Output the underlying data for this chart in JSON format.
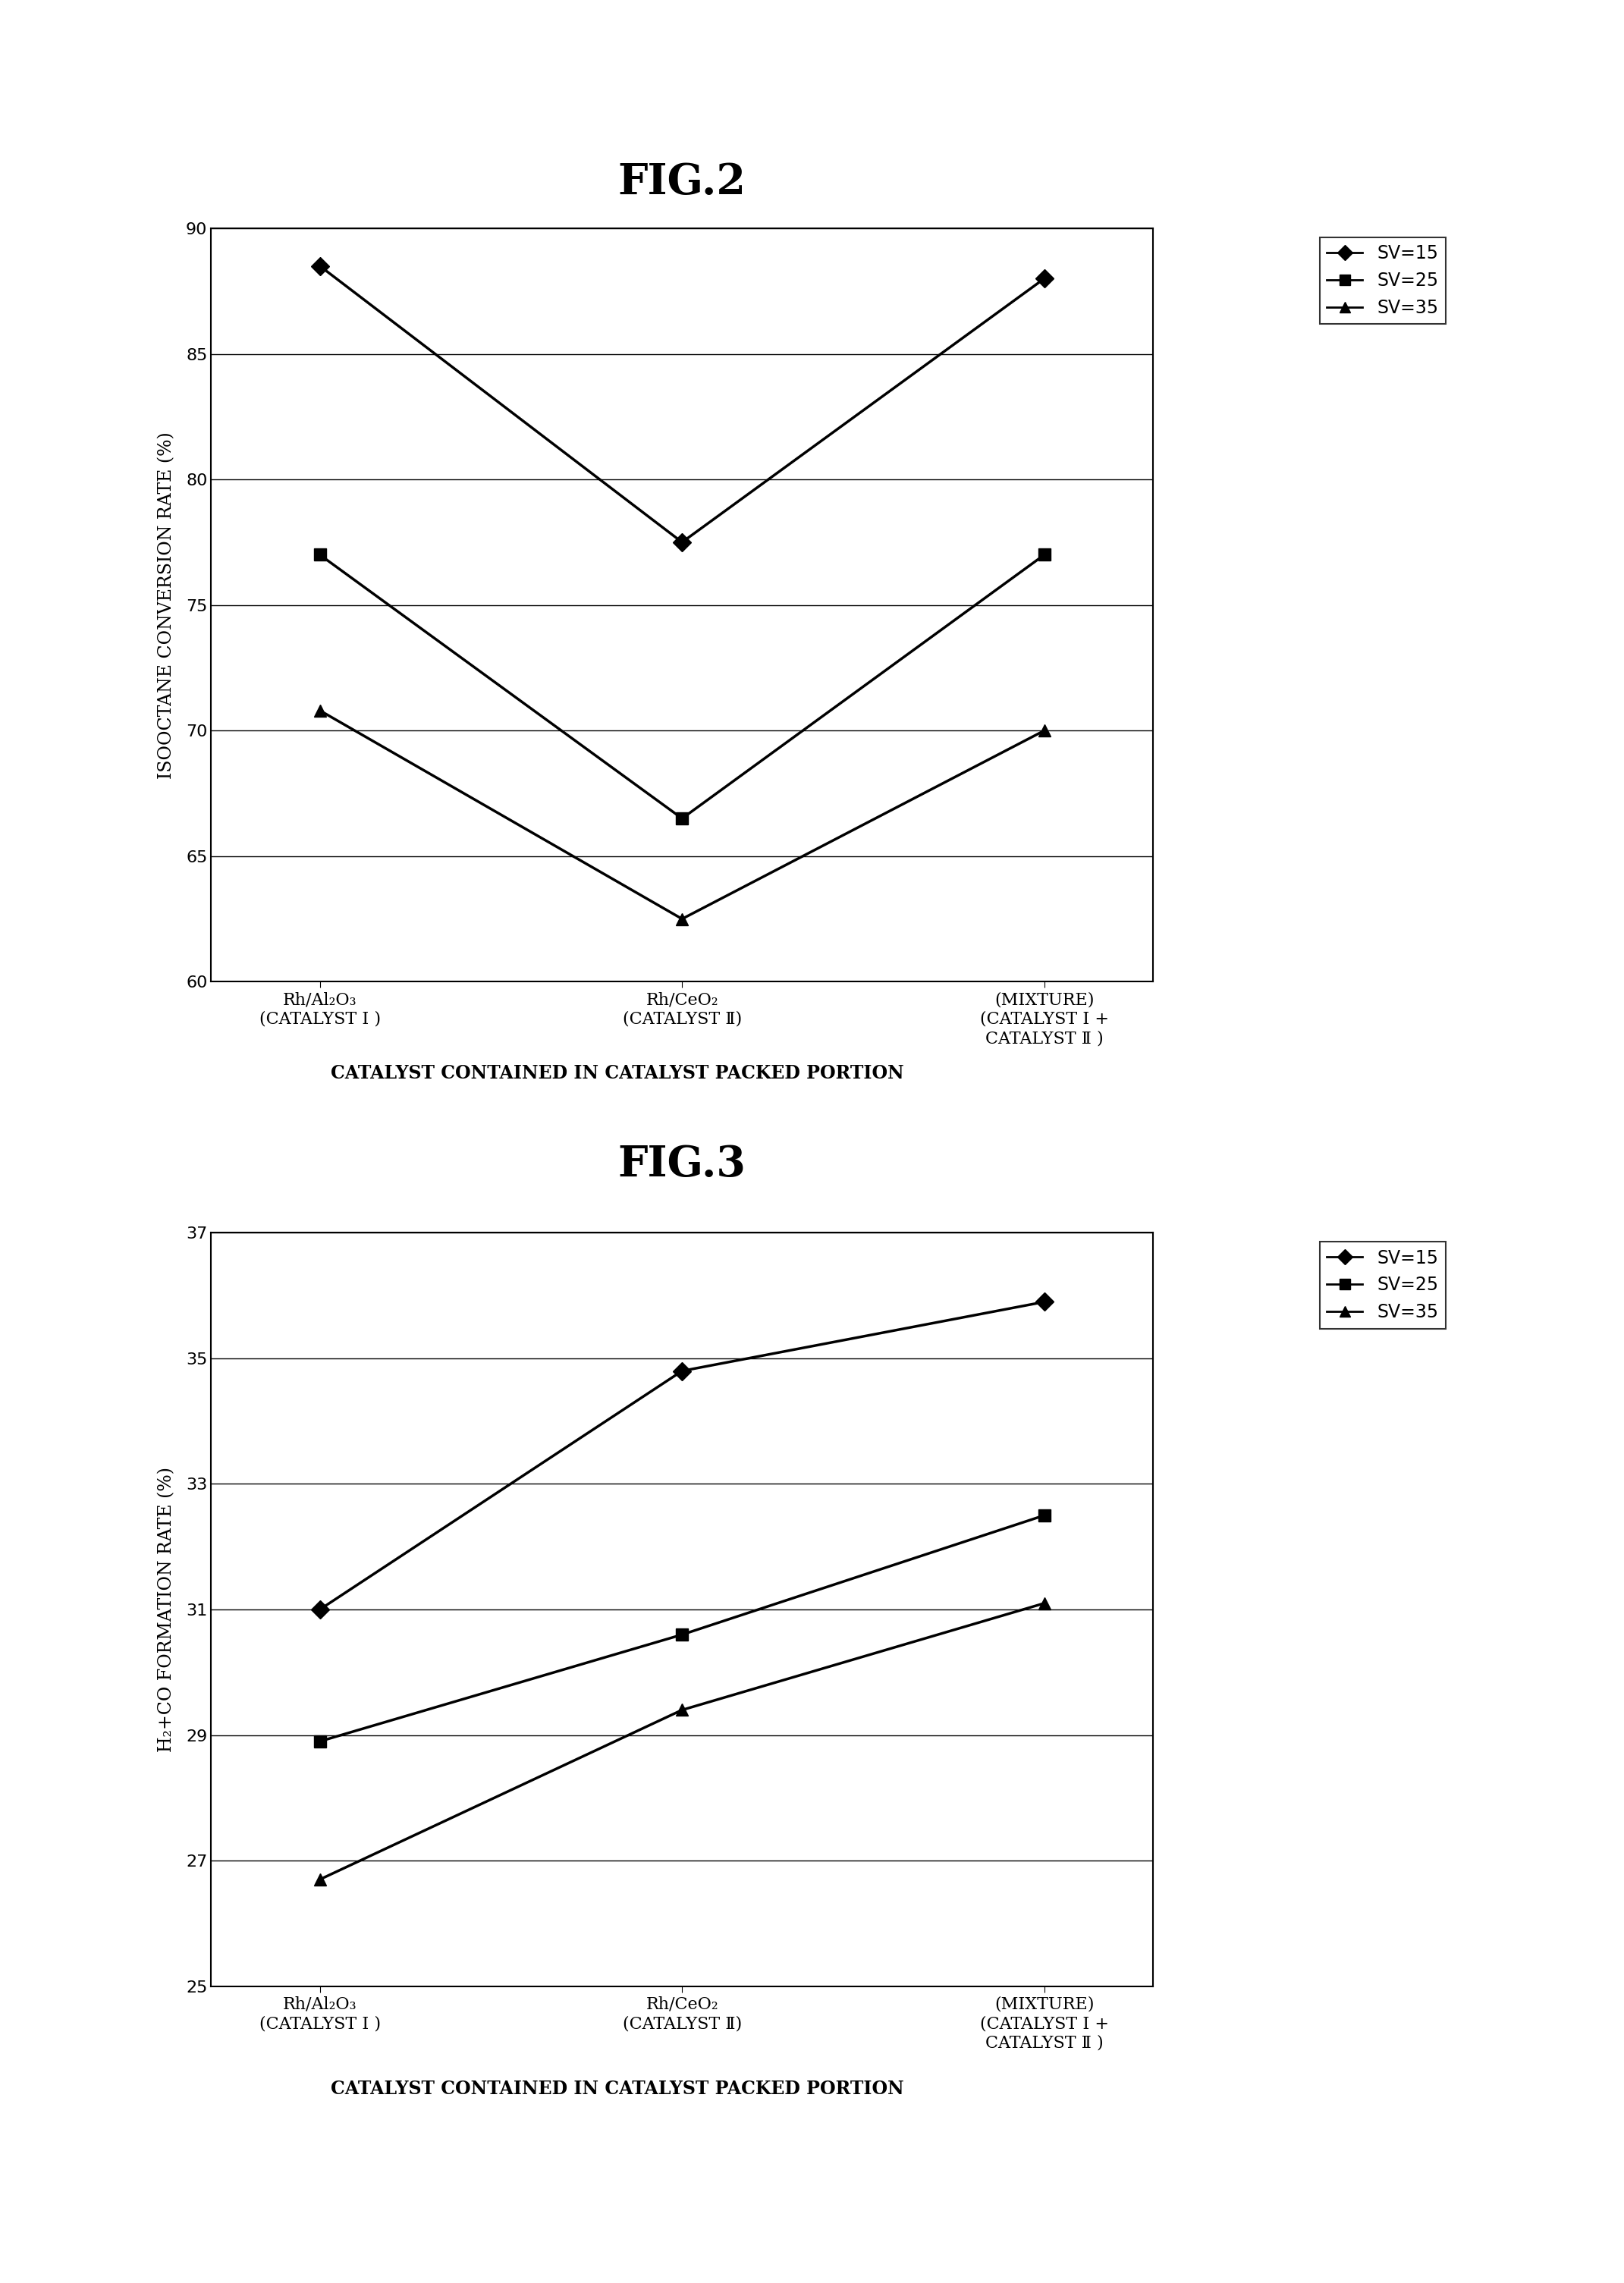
{
  "fig2_title": "FIG.2",
  "fig3_title": "FIG.3",
  "x_labels": [
    "Rh/Al₂O₃\n(CATALYST Ⅰ )",
    "Rh/CeO₂\n(CATALYST Ⅱ)",
    "(MIXTURE)\n(CATALYST Ⅰ +\nCATALYST Ⅱ )"
  ],
  "fig2_sv15": [
    88.5,
    77.5,
    88.0
  ],
  "fig2_sv25": [
    77.0,
    66.5,
    77.0
  ],
  "fig2_sv35": [
    70.8,
    62.5,
    70.0
  ],
  "fig2_ylim": [
    60,
    90
  ],
  "fig2_yticks": [
    60,
    65,
    70,
    75,
    80,
    85,
    90
  ],
  "fig2_ylabel": "ISOOCTANE CONVERSION RATE (%)",
  "fig3_sv15": [
    31.0,
    34.8,
    35.9
  ],
  "fig3_sv25": [
    28.9,
    30.6,
    32.5
  ],
  "fig3_sv35": [
    26.7,
    29.4,
    31.1
  ],
  "fig3_ylim": [
    25,
    37
  ],
  "fig3_yticks": [
    25,
    27,
    29,
    31,
    33,
    35,
    37
  ],
  "fig3_ylabel": "H₂+CO FORMATION RATE (%)",
  "xlabel": "CATALYST CONTAINED IN CATALYST PACKED PORTION",
  "legend_sv15": "SV=15",
  "legend_sv25": "SV=25",
  "legend_sv35": "SV=35",
  "line_color": "#000000",
  "marker_sv15": "D",
  "marker_sv25": "s",
  "marker_sv35": "^",
  "markersize": 12,
  "linewidth": 2.5
}
